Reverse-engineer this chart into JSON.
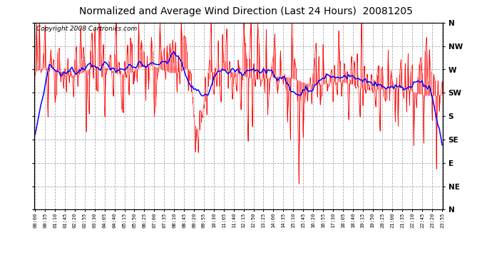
{
  "title": "Normalized and Average Wind Direction (Last 24 Hours)  20081205",
  "copyright": "Copyright 2008 Cartronics.com",
  "y_labels": [
    "N",
    "NW",
    "W",
    "SW",
    "S",
    "SE",
    "E",
    "NE",
    "N"
  ],
  "y_values": [
    360,
    315,
    270,
    225,
    180,
    135,
    90,
    45,
    0
  ],
  "y_min": 0,
  "y_max": 360,
  "background_color": "#ffffff",
  "plot_bg_color": "#ffffff",
  "grid_color": "#aaaaaa",
  "bar_color": "#ff0000",
  "avg_line_color": "#0000ff",
  "title_fontsize": 10,
  "copyright_fontsize": 6.5,
  "n_points": 288,
  "tick_every": 7,
  "avg_window": 20
}
